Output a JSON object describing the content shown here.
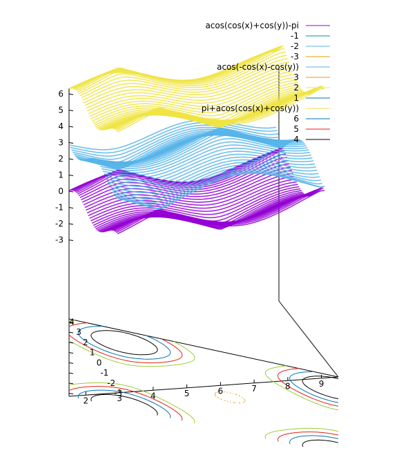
{
  "chart_data": {
    "type": "surface",
    "title": "",
    "z_ticks": [
      "6",
      "5",
      "4",
      "3",
      "2",
      "1",
      "0",
      "-1",
      "-2",
      "-3"
    ],
    "x_ticks": [
      "2",
      "3",
      "4",
      "5",
      "6",
      "7",
      "8",
      "9"
    ],
    "y_ticks": [
      "-3",
      "-2",
      "-1",
      "0",
      "1",
      "2",
      "3",
      "4"
    ],
    "z_range": [
      -4,
      7
    ],
    "x_range": [
      1.5,
      9.5
    ],
    "y_range": [
      -3.3,
      4.3
    ],
    "series": [
      {
        "name": "acos(cos(x)+cos(y))-pi",
        "color": "#9400d3",
        "z_offset": -3.14159
      },
      {
        "name": "acos(-cos(x)-cos(y))",
        "color": "#56b4e9",
        "z_offset": 0
      },
      {
        "name": "pi+acos(cos(x)+cos(y))",
        "color": "#f0e442",
        "z_offset": 3.14159
      }
    ],
    "legend": {
      "placement": "top-right",
      "groups": [
        {
          "title": "acos(cos(x)+cos(y))-pi",
          "title_color": "#9400d3",
          "levels": [
            {
              "label": "-1",
              "color": "#009e73"
            },
            {
              "label": "-2",
              "color": "#56b4e9"
            },
            {
              "label": "-3",
              "color": "#e69f00"
            }
          ]
        },
        {
          "title": "acos(-cos(x)-cos(y))",
          "title_color": "#56b4e9",
          "levels": [
            {
              "label": "3",
              "color": "#e69f00"
            },
            {
              "label": "2",
              "color": "#f0e442"
            },
            {
              "label": "1",
              "color": "#0072b2"
            }
          ]
        },
        {
          "title": "pi+acos(cos(x)+cos(y))",
          "title_color": "#f0e442",
          "levels": [
            {
              "label": "6",
              "color": "#0072b2"
            },
            {
              "label": "5",
              "color": "#e51e10"
            },
            {
              "label": "4",
              "color": "#000000"
            }
          ]
        }
      ]
    },
    "contours": [
      {
        "level": "c1",
        "color": "#000000"
      },
      {
        "level": "c2",
        "color": "#0072b2"
      },
      {
        "level": "c3",
        "color": "#e51e10"
      },
      {
        "level": "c4",
        "color": "#9acd32"
      },
      {
        "level": "c5",
        "color": "#e69f00"
      }
    ]
  }
}
